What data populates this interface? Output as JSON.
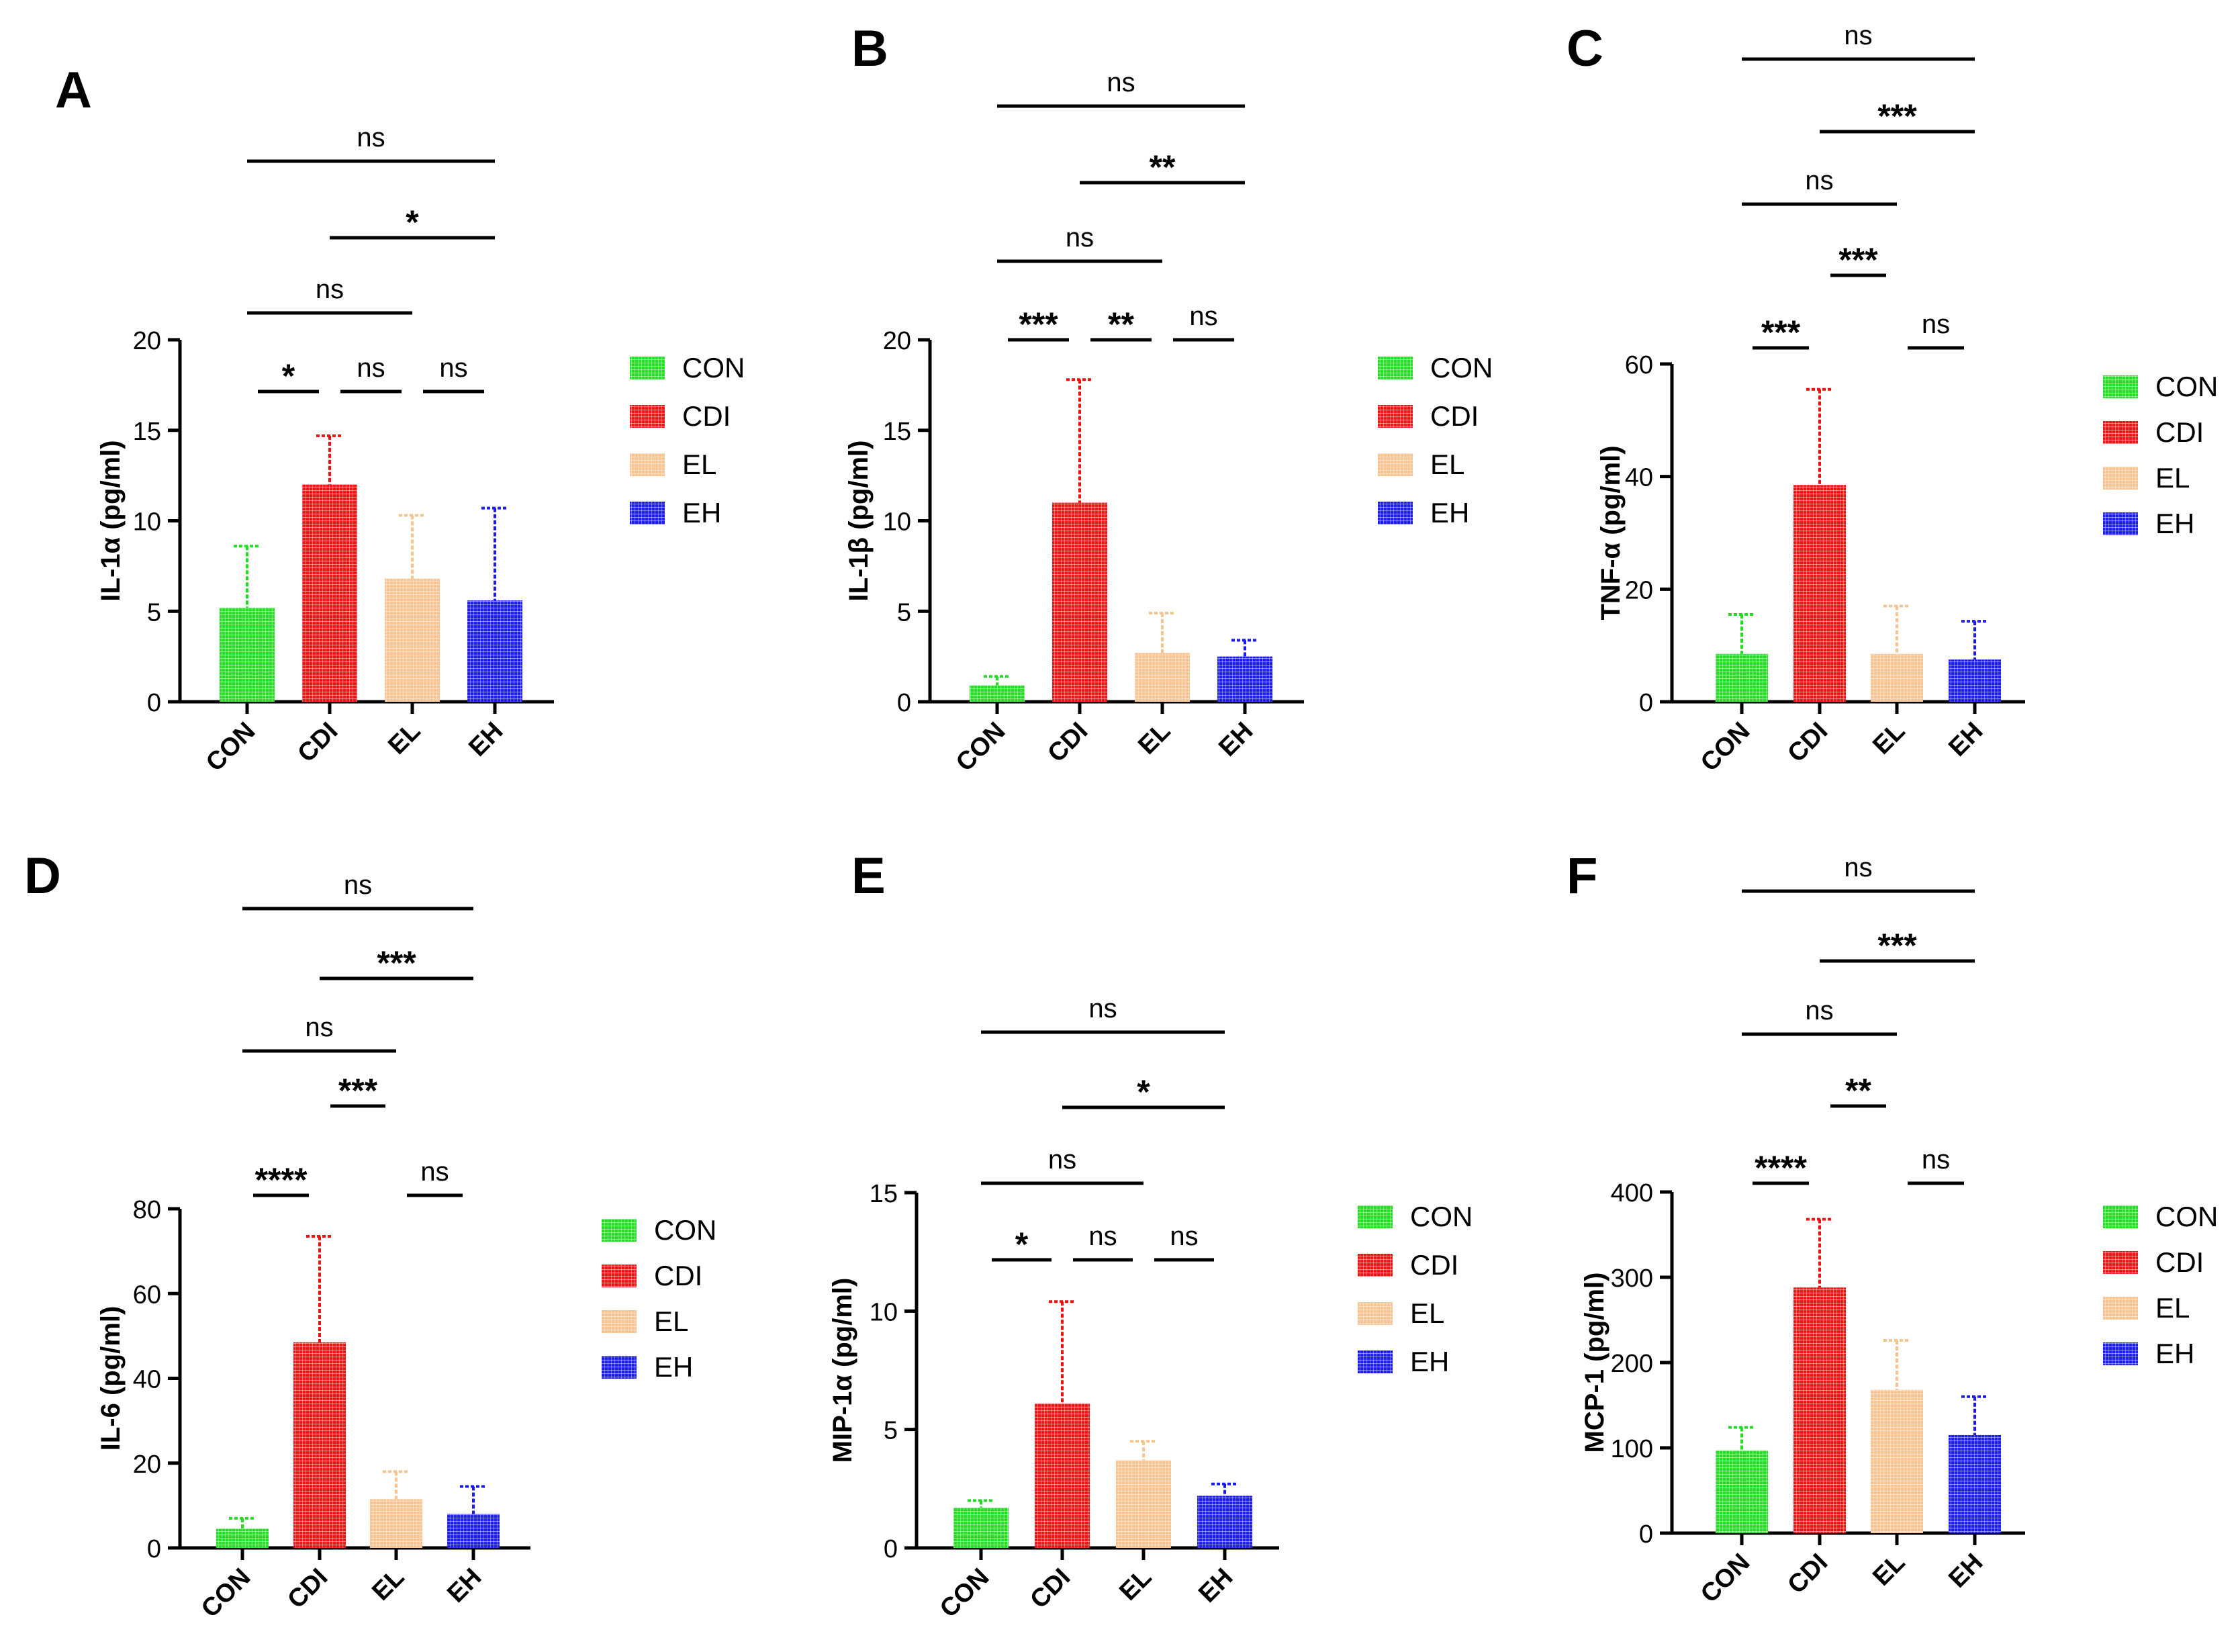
{
  "figure": {
    "groups": [
      "CON",
      "CDI",
      "EL",
      "EH"
    ],
    "colors": {
      "CON": "#22dd22",
      "CDI": "#ee1111",
      "EL": "#f7c38f",
      "EH": "#1a1aee",
      "axis": "#000000"
    }
  },
  "chart_data": [
    {
      "type": "bar",
      "panel": "A",
      "categories": [
        "CON",
        "CDI",
        "EL",
        "EH"
      ],
      "values": [
        5.2,
        12.0,
        6.8,
        5.6
      ],
      "errors": [
        3.4,
        2.7,
        3.5,
        5.1
      ],
      "ylabel": "IL-1α (pg/ml)",
      "ylim": [
        0,
        20
      ],
      "yticks": [
        0,
        5,
        10,
        15,
        20
      ],
      "legend": [
        "CON",
        "CDI",
        "EL",
        "EH"
      ],
      "significance": [
        {
          "from": "CON",
          "to": "CDI",
          "label": "*"
        },
        {
          "from": "CDI",
          "to": "EL",
          "label": "ns"
        },
        {
          "from": "EL",
          "to": "EH",
          "label": "ns"
        },
        {
          "from": "CON",
          "to": "EL",
          "label": "ns"
        },
        {
          "from": "CDI",
          "to": "EH",
          "label": "*"
        },
        {
          "from": "CON",
          "to": "EH",
          "label": "ns"
        }
      ]
    },
    {
      "type": "bar",
      "panel": "B",
      "categories": [
        "CON",
        "CDI",
        "EL",
        "EH"
      ],
      "values": [
        0.9,
        11.0,
        2.7,
        2.5
      ],
      "errors": [
        0.5,
        6.8,
        2.2,
        0.9
      ],
      "ylabel": "IL-1β (pg/ml)",
      "ylim": [
        0,
        20
      ],
      "yticks": [
        0,
        5,
        10,
        15,
        20
      ],
      "legend": [
        "CON",
        "CDI",
        "EL",
        "EH"
      ],
      "significance": [
        {
          "from": "CON",
          "to": "CDI",
          "label": "***"
        },
        {
          "from": "CDI",
          "to": "EL",
          "label": "**"
        },
        {
          "from": "EL",
          "to": "EH",
          "label": "ns"
        },
        {
          "from": "CON",
          "to": "EL",
          "label": "ns"
        },
        {
          "from": "CDI",
          "to": "EH",
          "label": "**"
        },
        {
          "from": "CON",
          "to": "EH",
          "label": "ns"
        }
      ]
    },
    {
      "type": "bar",
      "panel": "C",
      "categories": [
        "CON",
        "CDI",
        "EL",
        "EH"
      ],
      "values": [
        8.5,
        38.5,
        8.5,
        7.5
      ],
      "errors": [
        7.0,
        17.0,
        8.5,
        6.8
      ],
      "ylabel": "TNF-α (pg/ml)",
      "ylim": [
        0,
        60
      ],
      "yticks": [
        0,
        20,
        40,
        60
      ],
      "legend": [
        "CON",
        "CDI",
        "EL",
        "EH"
      ],
      "significance": [
        {
          "from": "CON",
          "to": "CDI",
          "label": "***"
        },
        {
          "from": "EL",
          "to": "EH",
          "label": "ns"
        },
        {
          "from": "CDI",
          "to": "EL",
          "label": "***"
        },
        {
          "from": "CON",
          "to": "EL",
          "label": "ns"
        },
        {
          "from": "CDI",
          "to": "EH",
          "label": "***"
        },
        {
          "from": "CON",
          "to": "EH",
          "label": "ns"
        }
      ]
    },
    {
      "type": "bar",
      "panel": "D",
      "categories": [
        "CON",
        "CDI",
        "EL",
        "EH"
      ],
      "values": [
        4.5,
        48.5,
        11.5,
        8.0
      ],
      "errors": [
        2.5,
        25.0,
        6.5,
        6.5
      ],
      "ylabel": "IL-6 (pg/ml)",
      "ylim": [
        0,
        80
      ],
      "yticks": [
        0,
        20,
        40,
        60,
        80
      ],
      "legend": [
        "CON",
        "CDI",
        "EL",
        "EH"
      ],
      "significance": [
        {
          "from": "CON",
          "to": "CDI",
          "label": "****"
        },
        {
          "from": "EL",
          "to": "EH",
          "label": "ns"
        },
        {
          "from": "CDI",
          "to": "EL",
          "label": "***"
        },
        {
          "from": "CON",
          "to": "EL",
          "label": "ns"
        },
        {
          "from": "CDI",
          "to": "EH",
          "label": "***"
        },
        {
          "from": "CON",
          "to": "EH",
          "label": "ns"
        }
      ]
    },
    {
      "type": "bar",
      "panel": "E",
      "categories": [
        "CON",
        "CDI",
        "EL",
        "EH"
      ],
      "values": [
        1.7,
        6.1,
        3.7,
        2.2
      ],
      "errors": [
        0.3,
        4.3,
        0.8,
        0.5
      ],
      "ylabel": "MIP-1α (pg/ml)",
      "ylim": [
        0,
        15
      ],
      "yticks": [
        0,
        5,
        10,
        15
      ],
      "legend": [
        "CON",
        "CDI",
        "EL",
        "EH"
      ],
      "significance": [
        {
          "from": "CON",
          "to": "CDI",
          "label": "*"
        },
        {
          "from": "CDI",
          "to": "EL",
          "label": "ns"
        },
        {
          "from": "EL",
          "to": "EH",
          "label": "ns"
        },
        {
          "from": "CON",
          "to": "EL",
          "label": "ns"
        },
        {
          "from": "CDI",
          "to": "EH",
          "label": "*"
        },
        {
          "from": "CON",
          "to": "EH",
          "label": "ns"
        }
      ]
    },
    {
      "type": "bar",
      "panel": "F",
      "categories": [
        "CON",
        "CDI",
        "EL",
        "EH"
      ],
      "values": [
        97,
        288,
        168,
        115
      ],
      "errors": [
        27,
        80,
        58,
        45
      ],
      "ylabel": "MCP-1 (pg/ml)",
      "ylim": [
        0,
        400
      ],
      "yticks": [
        0,
        100,
        200,
        300,
        400
      ],
      "legend": [
        "CON",
        "CDI",
        "EL",
        "EH"
      ],
      "significance": [
        {
          "from": "CON",
          "to": "CDI",
          "label": "****"
        },
        {
          "from": "EL",
          "to": "EH",
          "label": "ns"
        },
        {
          "from": "CDI",
          "to": "EL",
          "label": "**"
        },
        {
          "from": "CON",
          "to": "EL",
          "label": "ns"
        },
        {
          "from": "CDI",
          "to": "EH",
          "label": "***"
        },
        {
          "from": "CON",
          "to": "EH",
          "label": "ns"
        }
      ]
    }
  ]
}
